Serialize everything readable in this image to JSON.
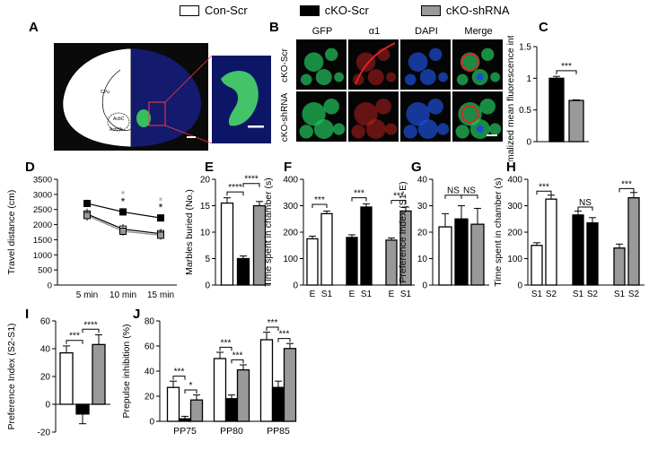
{
  "legend": {
    "items": [
      {
        "label": "Con-Scr",
        "color": "#ffffff"
      },
      {
        "label": "cKO-Scr",
        "color": "#000000"
      },
      {
        "label": "cKO-shRNA",
        "color": "#999999"
      }
    ]
  },
  "panels": {
    "A": {
      "letter": "A",
      "region_labels": [
        "CPu",
        "AcbC",
        "AcbSh"
      ]
    },
    "B": {
      "letter": "B",
      "columns": [
        "GFP",
        "α1",
        "DAPI",
        "Merge"
      ],
      "rows": [
        "cKO-Scr",
        "cKO-shRNA"
      ]
    },
    "C": {
      "letter": "C"
    },
    "D": {
      "letter": "D"
    },
    "E": {
      "letter": "E"
    },
    "F": {
      "letter": "F"
    },
    "G": {
      "letter": "G"
    },
    "H": {
      "letter": "H"
    },
    "I": {
      "letter": "I"
    },
    "J": {
      "letter": "J"
    }
  },
  "colors": {
    "con": "#ffffff",
    "cko": "#000000",
    "shrna": "#999999",
    "gfp": "#22c55e",
    "alpha1": "#dc2626",
    "dapi": "#1d4ed8"
  },
  "chart_data": [
    {
      "panel": "C",
      "type": "bar",
      "categories": [
        "cKO-Scr",
        "cKO-shRNA"
      ],
      "values": [
        1.0,
        0.65
      ],
      "errors": [
        0.03,
        0.01
      ],
      "ylabel": "Normalized mean fluorescence intensity",
      "ylim": [
        0,
        1.5
      ],
      "yticks": [
        0.0,
        0.5,
        1.0,
        1.5
      ],
      "annotations": [
        {
          "text": "***",
          "between": [
            0,
            1
          ]
        }
      ]
    },
    {
      "panel": "D",
      "type": "line",
      "x": [
        "5 min",
        "10 min",
        "15 min"
      ],
      "series": [
        {
          "group": "Con-Scr",
          "values": [
            2350,
            1850,
            1700
          ],
          "errors": [
            180,
            170,
            160
          ]
        },
        {
          "group": "cKO-Scr",
          "values": [
            2700,
            2420,
            2220
          ],
          "errors": [
            120,
            120,
            100
          ]
        },
        {
          "group": "cKO-shRNA",
          "values": [
            2300,
            1780,
            1650
          ],
          "errors": [
            170,
            150,
            150
          ]
        }
      ],
      "ylabel": "Travel distance (cm)",
      "ylim": [
        0,
        3500
      ],
      "yticks": [
        0,
        500,
        1000,
        1500,
        2000,
        2500,
        3000,
        3500
      ],
      "annotations": [
        {
          "text": "*",
          "x": 1,
          "y": 2870,
          "color": "gray"
        },
        {
          "text": "*",
          "x": 1,
          "y": 2640,
          "color": "black"
        },
        {
          "text": "*",
          "x": 2,
          "y": 2660,
          "color": "gray"
        },
        {
          "text": "*",
          "x": 2,
          "y": 2450,
          "color": "black"
        }
      ]
    },
    {
      "panel": "E",
      "type": "bar",
      "categories": [
        "Con-Scr",
        "cKO-Scr",
        "cKO-shRNA"
      ],
      "values": [
        15.5,
        5.0,
        15.0
      ],
      "errors": [
        1.0,
        0.5,
        0.8
      ],
      "ylabel": "Marbles buried (No.)",
      "ylim": [
        0,
        20
      ],
      "yticks": [
        0,
        5,
        10,
        15,
        20
      ],
      "annotations": [
        {
          "text": "****",
          "between": [
            0,
            1
          ]
        },
        {
          "text": "****",
          "between": [
            1,
            2
          ]
        }
      ]
    },
    {
      "panel": "F",
      "type": "bar",
      "categories": [
        "E",
        "S1",
        "E",
        "S1",
        "E",
        "S1"
      ],
      "values": [
        175,
        270,
        180,
        295,
        170,
        280
      ],
      "errors": [
        10,
        10,
        10,
        12,
        8,
        15
      ],
      "ylabel": "Time spent in chamber (s)",
      "ylim": [
        0,
        400
      ],
      "yticks": [
        0,
        100,
        200,
        300,
        400
      ],
      "annotations": [
        {
          "text": "***",
          "between": [
            0,
            1
          ]
        },
        {
          "text": "***",
          "between": [
            2,
            3
          ]
        },
        {
          "text": "***",
          "between": [
            4,
            5
          ]
        }
      ]
    },
    {
      "panel": "G",
      "type": "bar",
      "categories": [
        "Con-Scr",
        "cKO-Scr",
        "cKO-shRNA"
      ],
      "values": [
        22,
        25,
        23
      ],
      "errors": [
        5,
        5,
        6
      ],
      "ylabel": "Preference Index (S1-E)",
      "ylim": [
        0,
        40
      ],
      "yticks": [
        0,
        10,
        20,
        30,
        40
      ],
      "annotations": [
        {
          "text": "NS",
          "between": [
            0,
            1
          ]
        },
        {
          "text": "NS",
          "between": [
            1,
            2
          ]
        }
      ]
    },
    {
      "panel": "H",
      "type": "bar",
      "categories": [
        "S1",
        "S2",
        "S1",
        "S2",
        "S1",
        "S2"
      ],
      "values": [
        150,
        325,
        265,
        235,
        140,
        330
      ],
      "errors": [
        10,
        15,
        15,
        20,
        15,
        20
      ],
      "ylabel": "Time spent in chamber (s)",
      "ylim": [
        0,
        400
      ],
      "yticks": [
        0,
        100,
        200,
        300,
        400
      ],
      "annotations": [
        {
          "text": "***",
          "between": [
            0,
            1
          ]
        },
        {
          "text": "NS",
          "between": [
            2,
            3
          ]
        },
        {
          "text": "***",
          "between": [
            4,
            5
          ]
        }
      ]
    },
    {
      "panel": "I",
      "type": "bar",
      "categories": [
        "Con-Scr",
        "cKO-Scr",
        "cKO-shRNA"
      ],
      "values": [
        37,
        -7,
        43
      ],
      "errors": [
        5,
        7,
        7
      ],
      "ylabel": "Preference Index (S2-S1)",
      "ylim": [
        -20,
        60
      ],
      "yticks": [
        -20,
        0,
        20,
        40,
        60
      ],
      "annotations": [
        {
          "text": "***",
          "between": [
            0,
            1
          ]
        },
        {
          "text": "****",
          "between": [
            1,
            2
          ]
        }
      ]
    },
    {
      "panel": "J",
      "type": "bar",
      "categories": [
        "PP75",
        "PP80",
        "PP85"
      ],
      "series": [
        {
          "group": "Con-Scr",
          "values": [
            27,
            50,
            65
          ],
          "errors": [
            5,
            5,
            6
          ]
        },
        {
          "group": "cKO-Scr",
          "values": [
            2,
            18,
            27
          ],
          "errors": [
            2,
            3,
            5
          ]
        },
        {
          "group": "cKO-shRNA",
          "values": [
            17,
            41,
            58
          ],
          "errors": [
            4,
            4,
            4
          ]
        }
      ],
      "ylabel": "Prepulse inhibition (%)",
      "ylim": [
        0,
        80
      ],
      "yticks": [
        0,
        20,
        40,
        60,
        80
      ],
      "annotations": [
        {
          "text": "***",
          "group": 0,
          "between": [
            0,
            1
          ]
        },
        {
          "text": "*",
          "group": 0,
          "between": [
            1,
            2
          ]
        },
        {
          "text": "***",
          "group": 1,
          "between": [
            0,
            1
          ]
        },
        {
          "text": "***",
          "group": 1,
          "between": [
            1,
            2
          ]
        },
        {
          "text": "***",
          "group": 2,
          "between": [
            0,
            1
          ]
        },
        {
          "text": "***",
          "group": 2,
          "between": [
            1,
            2
          ]
        }
      ]
    }
  ]
}
